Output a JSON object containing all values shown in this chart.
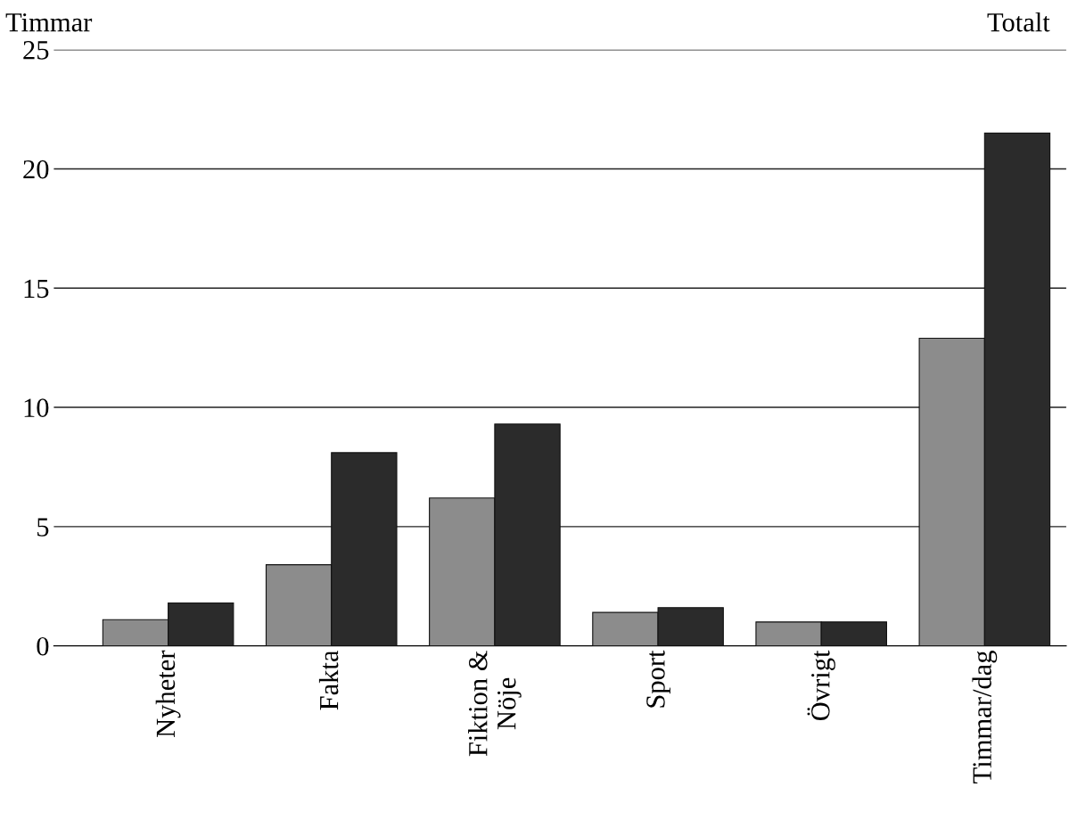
{
  "chart_data": {
    "type": "bar",
    "ylabel": "Timmar",
    "annotations": [
      "Totalt"
    ],
    "categories": [
      "Nyheter",
      "Fakta",
      "Fiktion &\nNöje",
      "Sport",
      "Övrigt",
      "Timmar/dag"
    ],
    "series": [
      {
        "color": "#8c8c8c",
        "values": [
          1.1,
          3.4,
          6.2,
          1.4,
          1.0,
          12.9
        ]
      },
      {
        "color": "#2b2b2b",
        "values": [
          1.8,
          8.1,
          9.3,
          1.6,
          1.0,
          21.5
        ]
      }
    ],
    "ylim": [
      0,
      25
    ],
    "yticks": [
      0,
      5,
      10,
      15,
      20,
      25
    ],
    "grid": "y"
  }
}
